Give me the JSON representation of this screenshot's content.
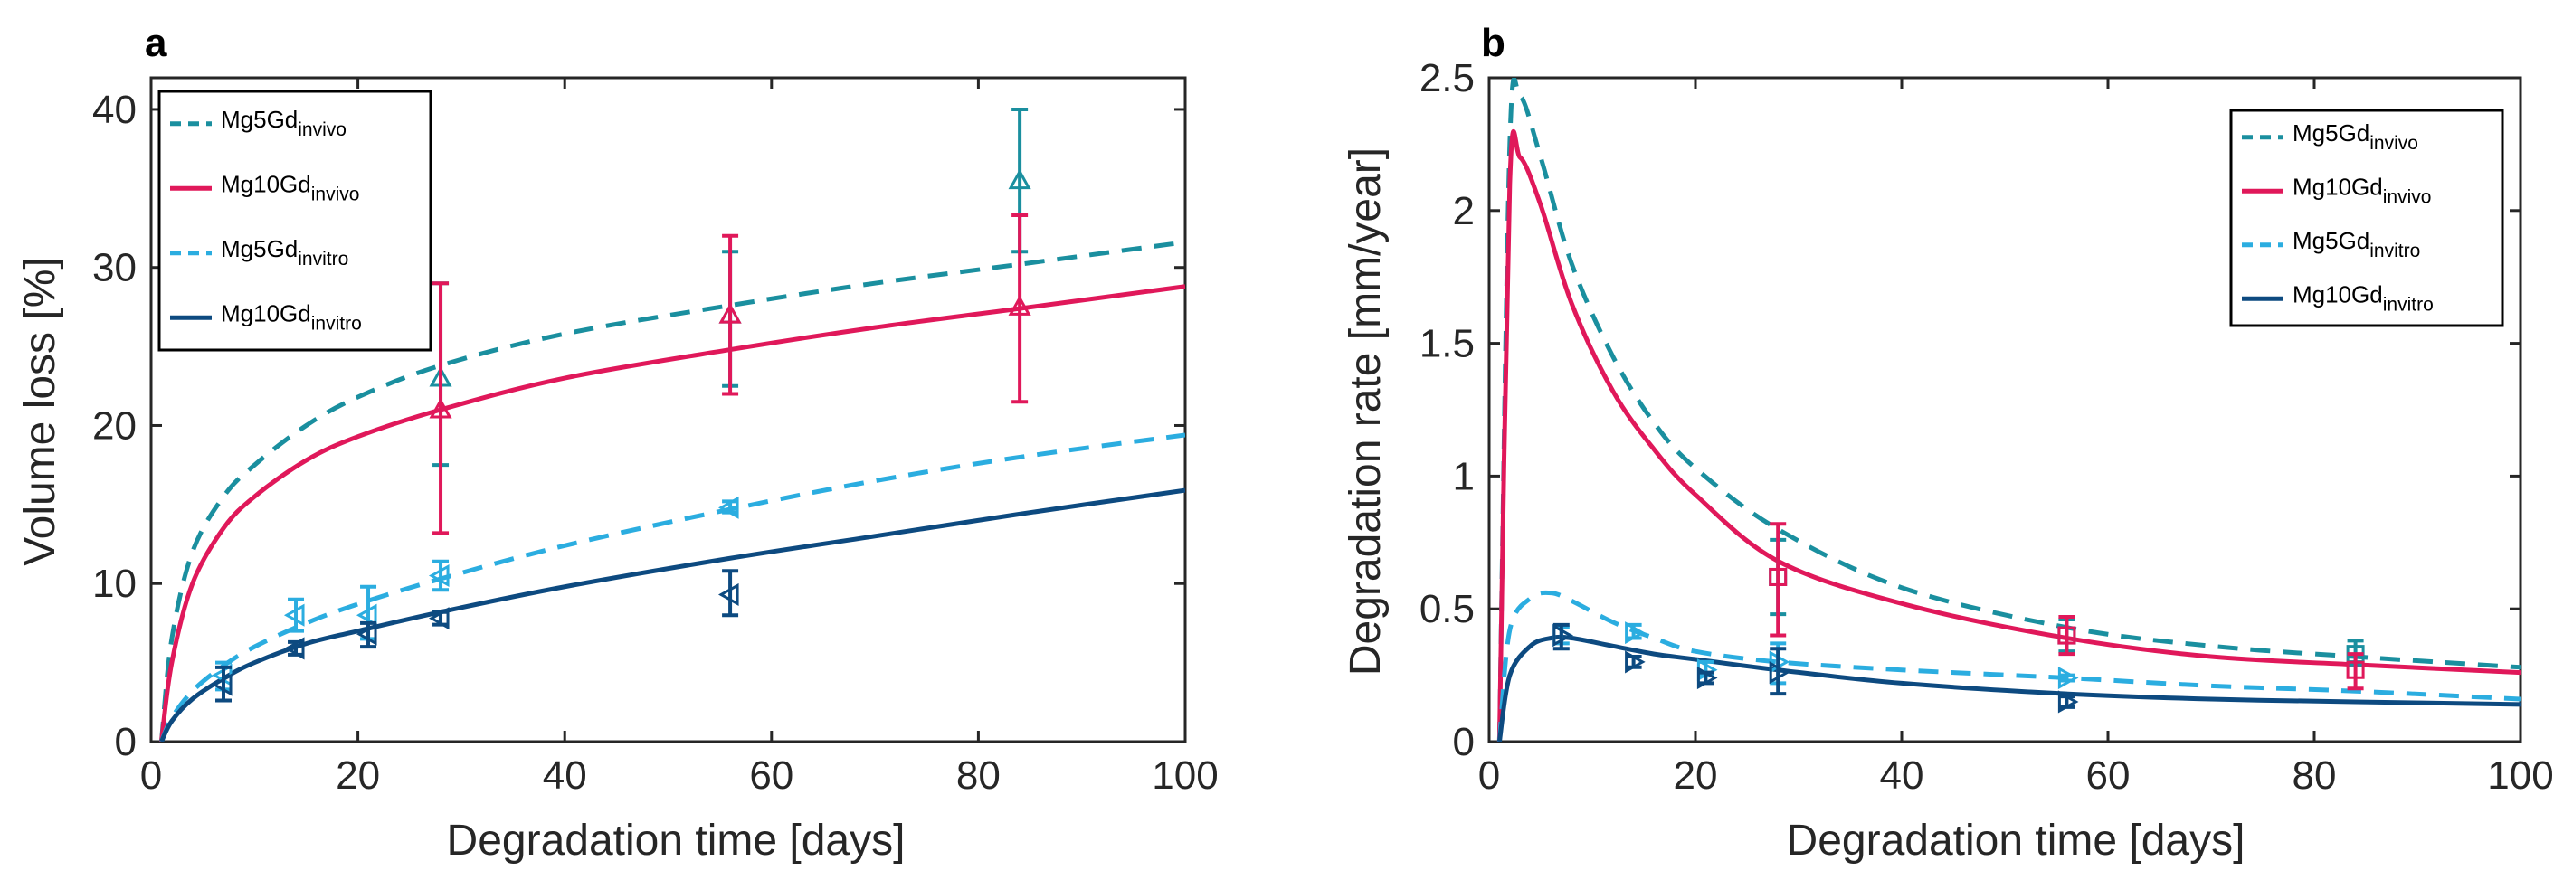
{
  "chart_data": [
    {
      "panel_label": "a",
      "type": "line",
      "xlabel": "Degradation time [days]",
      "ylabel": "Volume loss [%]",
      "xlim": [
        0,
        100
      ],
      "ylim": [
        0,
        42
      ],
      "xticks": [
        0,
        20,
        40,
        60,
        80,
        100
      ],
      "yticks": [
        0,
        10,
        20,
        30,
        40
      ],
      "x_tick_labels": [
        "0",
        "20",
        "40",
        "60",
        "80",
        "100"
      ],
      "y_tick_labels": [
        "0",
        "10",
        "20",
        "30",
        "40"
      ],
      "legend_position": "top-left",
      "series": [
        {
          "name": "Mg5Gd",
          "sub": "invivo",
          "color": "#1a8f9f",
          "dash": "dash",
          "marker": "triangle-up",
          "x": [
            1,
            2,
            4,
            7,
            10,
            15,
            20,
            28,
            40,
            56,
            70,
            84,
            100
          ],
          "y": [
            0,
            6.5,
            12,
            15.5,
            17.5,
            20,
            21.8,
            23.8,
            25.8,
            27.6,
            29,
            30.2,
            31.6
          ],
          "points": [
            [
              28,
              23,
              17.5,
              29
            ],
            [
              56,
              27,
              22.5,
              31
            ],
            [
              84,
              35.5,
              31,
              40
            ]
          ]
        },
        {
          "name": "Mg10Gd",
          "sub": "invivo",
          "color": "#e0185a",
          "dash": "solid",
          "marker": "triangle-up",
          "x": [
            1,
            2,
            4,
            7,
            10,
            15,
            20,
            28,
            40,
            56,
            70,
            84,
            100
          ],
          "y": [
            0,
            5,
            10,
            13.5,
            15.5,
            17.8,
            19.3,
            21,
            23,
            24.8,
            26.2,
            27.4,
            28.8
          ],
          "points": [
            [
              28,
              21,
              13.2,
              29
            ],
            [
              56,
              27,
              22,
              32
            ],
            [
              84,
              27.5,
              21.5,
              33.3
            ]
          ]
        },
        {
          "name": "Mg5Gd",
          "sub": "invitro",
          "color": "#2bade0",
          "dash": "dash",
          "marker": "triangle-left",
          "x": [
            1,
            2,
            4,
            7,
            10,
            15,
            20,
            28,
            40,
            56,
            70,
            84,
            100
          ],
          "y": [
            0,
            1.5,
            3.2,
            4.8,
            6,
            7.5,
            8.7,
            10.3,
            12.4,
            14.7,
            16.5,
            18,
            19.4
          ],
          "points": [
            [
              7,
              4.2,
              3.3,
              5
            ],
            [
              14,
              8,
              7,
              9
            ],
            [
              21,
              8,
              6.5,
              9.8
            ],
            [
              28,
              10.5,
              9.6,
              11.4
            ],
            [
              56,
              14.8,
              14.5,
              15.2
            ]
          ]
        },
        {
          "name": "Mg10Gd",
          "sub": "invitro",
          "color": "#0d4a80",
          "dash": "solid",
          "marker": "triangle-left",
          "x": [
            1,
            2,
            4,
            7,
            10,
            15,
            20,
            28,
            40,
            56,
            70,
            84,
            100
          ],
          "y": [
            0,
            1.3,
            2.7,
            4,
            5,
            6.2,
            7,
            8.2,
            9.8,
            11.6,
            13,
            14.4,
            15.9
          ],
          "points": [
            [
              7,
              3.6,
              2.6,
              4.7
            ],
            [
              14,
              5.9,
              5.5,
              6.3
            ],
            [
              21,
              6.8,
              6,
              7.5
            ],
            [
              28,
              7.8,
              7.4,
              8.2
            ],
            [
              56,
              9.3,
              8,
              10.8
            ]
          ]
        }
      ]
    },
    {
      "panel_label": "b",
      "type": "line",
      "xlabel": "Degradation time [days]",
      "ylabel": "Degradation rate [mm/year]",
      "xlim": [
        0,
        100
      ],
      "ylim": [
        0,
        2.5
      ],
      "xticks": [
        0,
        20,
        40,
        60,
        80,
        100
      ],
      "yticks": [
        0,
        0.5,
        1,
        1.5,
        2,
        2.5
      ],
      "x_tick_labels": [
        "0",
        "20",
        "40",
        "60",
        "80",
        "100"
      ],
      "y_tick_labels": [
        "0",
        "0.5",
        "1",
        "1.5",
        "2",
        "2.5"
      ],
      "legend_position": "top-right",
      "series": [
        {
          "name": "Mg5Gd",
          "sub": "invivo",
          "color": "#1a8f9f",
          "dash": "dash",
          "marker": "square",
          "x": [
            1,
            2,
            3,
            5,
            8,
            12,
            16,
            20,
            28,
            40,
            56,
            70,
            84,
            100
          ],
          "y": [
            0,
            2.25,
            2.43,
            2.2,
            1.8,
            1.45,
            1.2,
            1.03,
            0.8,
            0.58,
            0.43,
            0.36,
            0.32,
            0.28
          ],
          "points": [
            [
              28,
              0.62,
              0.48,
              0.76
            ],
            [
              56,
              0.4,
              0.34,
              0.46
            ],
            [
              84,
              0.33,
              0.29,
              0.38
            ]
          ]
        },
        {
          "name": "Mg10Gd",
          "sub": "invivo",
          "color": "#e0185a",
          "dash": "solid",
          "marker": "square",
          "x": [
            1,
            2,
            3,
            5,
            8,
            12,
            16,
            20,
            28,
            40,
            56,
            70,
            84,
            100
          ],
          "y": [
            0,
            2.1,
            2.2,
            2.02,
            1.65,
            1.32,
            1.1,
            0.93,
            0.68,
            0.52,
            0.39,
            0.32,
            0.29,
            0.26
          ],
          "points": [
            [
              28,
              0.62,
              0.4,
              0.82
            ],
            [
              56,
              0.4,
              0.33,
              0.47
            ],
            [
              84,
              0.27,
              0.2,
              0.33
            ]
          ]
        },
        {
          "name": "Mg5Gd",
          "sub": "invitro",
          "color": "#2bade0",
          "dash": "dash",
          "marker": "triangle-right",
          "x": [
            1,
            2,
            4,
            6,
            8,
            12,
            16,
            20,
            28,
            40,
            56,
            70,
            84,
            100
          ],
          "y": [
            0,
            0.42,
            0.54,
            0.56,
            0.53,
            0.45,
            0.39,
            0.34,
            0.3,
            0.27,
            0.24,
            0.21,
            0.19,
            0.16
          ],
          "points": [
            [
              7,
              0.4,
              0.37,
              0.43
            ],
            [
              14,
              0.41,
              0.39,
              0.44
            ],
            [
              21,
              0.27,
              0.25,
              0.3
            ],
            [
              28,
              0.3,
              0.22,
              0.37
            ],
            [
              56,
              0.24,
              0.23,
              0.25
            ]
          ]
        },
        {
          "name": "Mg10Gd",
          "sub": "invitro",
          "color": "#0d4a80",
          "dash": "solid",
          "marker": "triangle-right",
          "x": [
            1,
            2,
            4,
            6,
            8,
            12,
            16,
            20,
            28,
            40,
            56,
            70,
            84,
            100
          ],
          "y": [
            0,
            0.25,
            0.36,
            0.39,
            0.39,
            0.36,
            0.33,
            0.31,
            0.27,
            0.22,
            0.18,
            0.16,
            0.15,
            0.14
          ],
          "points": [
            [
              7,
              0.4,
              0.35,
              0.44
            ],
            [
              14,
              0.3,
              0.28,
              0.32
            ],
            [
              21,
              0.24,
              0.22,
              0.26
            ],
            [
              28,
              0.26,
              0.18,
              0.35
            ],
            [
              56,
              0.15,
              0.13,
              0.17
            ]
          ]
        }
      ]
    }
  ]
}
